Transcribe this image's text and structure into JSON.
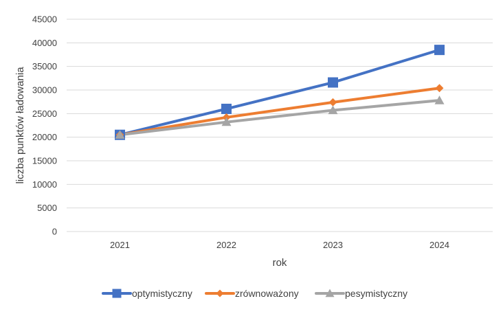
{
  "chart_data": {
    "type": "line",
    "title": "",
    "xlabel": "rok",
    "ylabel": "liczba punktów ładowania",
    "categories": [
      "2021",
      "2022",
      "2023",
      "2024"
    ],
    "ylim": [
      0,
      45000
    ],
    "yticks": [
      0,
      5000,
      10000,
      15000,
      20000,
      25000,
      30000,
      35000,
      40000,
      45000
    ],
    "grid": true,
    "legend_position": "bottom",
    "series": [
      {
        "name": "optymistyczny",
        "color": "#4472C4",
        "marker": "square",
        "values": [
          20500,
          26000,
          31600,
          38500
        ]
      },
      {
        "name": "zrównoważony",
        "color": "#ED7D31",
        "marker": "diamond",
        "values": [
          20500,
          24200,
          27400,
          30400
        ]
      },
      {
        "name": "pesymistyczny",
        "color": "#A5A5A5",
        "marker": "triangle",
        "values": [
          20500,
          23200,
          25700,
          27800
        ]
      }
    ]
  }
}
